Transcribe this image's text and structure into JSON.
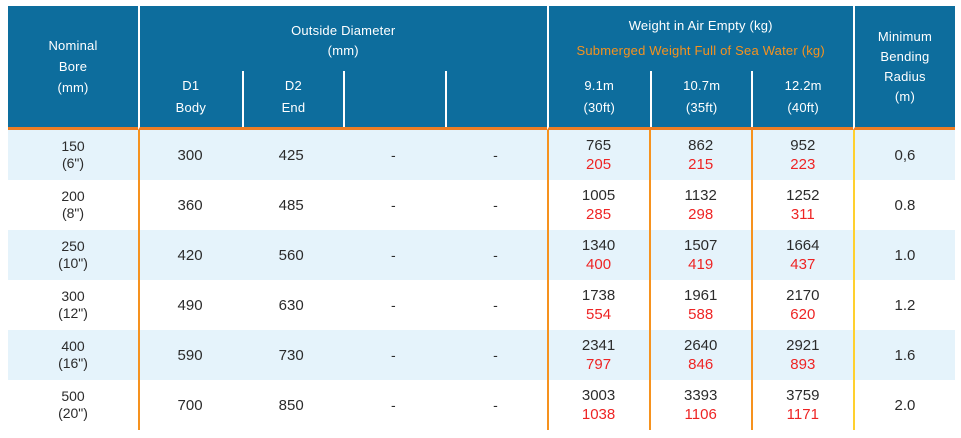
{
  "colors": {
    "header_bg": "#0D6D9D",
    "accent_orange": "#F6921E",
    "header_rule_orange": "#ED7D23",
    "accent_yellow": "#FFD02E",
    "row_alt_blue": "#E5F3FB",
    "text_dark": "#2B2B2B",
    "submerged_red": "#EE2424",
    "header_text": "#FFFFFF"
  },
  "header": {
    "nominal_bore": "Nominal\nBore\n(mm)",
    "outside_diameter": "Outside Diameter\n(mm)",
    "weight_air": "Weight in Air Empty (kg)",
    "submerged": "Submerged Weight Full of Sea Water (kg)",
    "min_bending_radius": "Minimum\nBending\nRadius\n(m)",
    "subcolumns": {
      "d1": {
        "code": "D1",
        "label": "Body"
      },
      "d2": {
        "code": "D2",
        "label": "End"
      },
      "spare1": {
        "code": "",
        "label": ""
      },
      "spare2": {
        "code": "",
        "label": ""
      },
      "len1": {
        "length_m": "9.1m",
        "length_ft": "(30ft)"
      },
      "len2": {
        "length_m": "10.7m",
        "length_ft": "(35ft)"
      },
      "len3": {
        "length_m": "12.2m",
        "length_ft": "(40ft)"
      }
    }
  },
  "rows": [
    {
      "bore": "150\n(6\")",
      "d1": "300",
      "d2": "425",
      "spare1": "-",
      "spare2": "-",
      "air1": "765",
      "sub1": "205",
      "air2": "862",
      "sub2": "215",
      "air3": "952",
      "sub3": "223",
      "radius": "0,6"
    },
    {
      "bore": "200\n(8\")",
      "d1": "360",
      "d2": "485",
      "spare1": "-",
      "spare2": "-",
      "air1": "1005",
      "sub1": "285",
      "air2": "1132",
      "sub2": "298",
      "air3": "1252",
      "sub3": "311",
      "radius": "0.8"
    },
    {
      "bore": "250\n(10\")",
      "d1": "420",
      "d2": "560",
      "spare1": "-",
      "spare2": "-",
      "air1": "1340",
      "sub1": "400",
      "air2": "1507",
      "sub2": "419",
      "air3": "1664",
      "sub3": "437",
      "radius": "1.0"
    },
    {
      "bore": "300\n(12\")",
      "d1": "490",
      "d2": "630",
      "spare1": "-",
      "spare2": "-",
      "air1": "1738",
      "sub1": "554",
      "air2": "1961",
      "sub2": "588",
      "air3": "2170",
      "sub3": "620",
      "radius": "1.2"
    },
    {
      "bore": "400\n(16\")",
      "d1": "590",
      "d2": "730",
      "spare1": "-",
      "spare2": "-",
      "air1": "2341",
      "sub1": "797",
      "air2": "2640",
      "sub2": "846",
      "air3": "2921",
      "sub3": "893",
      "radius": "1.6"
    },
    {
      "bore": "500\n(20\")",
      "d1": "700",
      "d2": "850",
      "spare1": "-",
      "spare2": "-",
      "air1": "3003",
      "sub1": "1038",
      "air2": "3393",
      "sub2": "1106",
      "air3": "3759",
      "sub3": "1171",
      "radius": "2.0"
    }
  ]
}
